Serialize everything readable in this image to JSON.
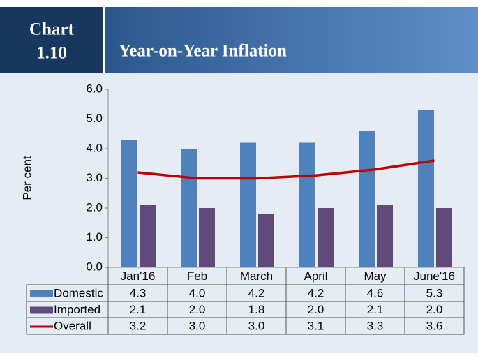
{
  "header": {
    "label": "Chart",
    "number": "1.10"
  },
  "chart_data": {
    "type": "bar",
    "title": "Year-on-Year Inflation",
    "y_label": "Per cent",
    "categories": [
      "Jan'16",
      "Feb",
      "March",
      "April",
      "May",
      "June'16"
    ],
    "series": [
      {
        "name": "Domestic",
        "type": "bar",
        "color": "#4f81bd",
        "values": [
          4.3,
          4.0,
          4.2,
          4.2,
          4.6,
          5.3
        ],
        "value_labels": [
          "4.3",
          "4.0",
          "4.2",
          "4.2",
          "4.6",
          "5.3"
        ]
      },
      {
        "name": "Imported",
        "type": "bar",
        "color": "#604a7b",
        "values": [
          2.1,
          2.0,
          1.8,
          2.0,
          2.1,
          2.0
        ],
        "value_labels": [
          "2.1",
          "2.0",
          "1.8",
          "2.0",
          "2.1",
          "2.0"
        ]
      },
      {
        "name": "Overall",
        "type": "line",
        "color": "#c00000",
        "values": [
          3.2,
          3.0,
          3.0,
          3.1,
          3.3,
          3.6
        ],
        "value_labels": [
          "3.2",
          "3.0",
          "3.0",
          "3.1",
          "3.3",
          "3.6"
        ]
      }
    ],
    "ylim": [
      0,
      6
    ],
    "yticks": [
      {
        "value": 0,
        "label": "0.0"
      },
      {
        "value": 1,
        "label": "1.0"
      },
      {
        "value": 2,
        "label": "2.0"
      },
      {
        "value": 3,
        "label": "3.0"
      },
      {
        "value": 4,
        "label": "4.0"
      },
      {
        "value": 5,
        "label": "5.0"
      },
      {
        "value": 6,
        "label": "6.0"
      }
    ],
    "grid": false,
    "legend": "data-table"
  }
}
